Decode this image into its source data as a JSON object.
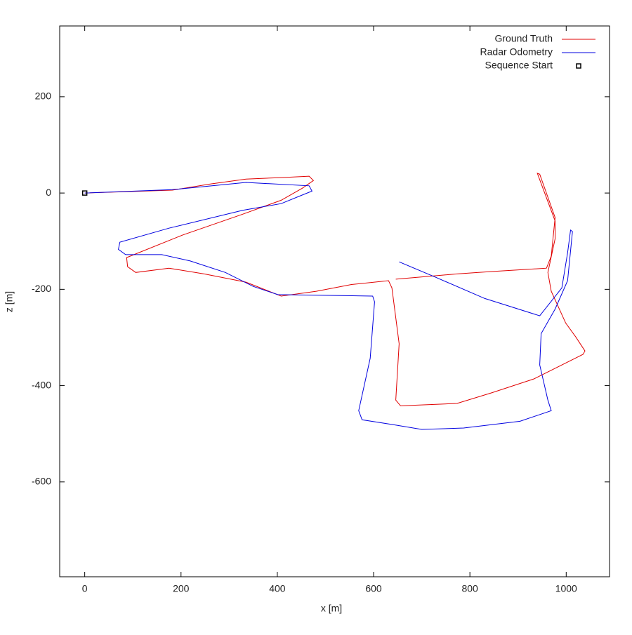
{
  "chart_data": {
    "type": "line",
    "xlabel": "x [m]",
    "ylabel": "z [m]",
    "xlim": [
      -52,
      1090
    ],
    "ylim": [
      -797,
      347
    ],
    "xticks": [
      0,
      200,
      400,
      600,
      800,
      1000
    ],
    "yticks": [
      -600,
      -400,
      -200,
      0,
      200
    ],
    "legend": "top-right",
    "series": [
      {
        "name": "Ground Truth",
        "color": "#e00000",
        "marker": "none",
        "x": [
          0,
          182,
          262,
          335,
          408,
          466,
          475,
          452,
          408,
          328,
          204,
          87,
          89,
          106,
          175,
          248,
          335,
          408,
          481,
          554,
          631,
          638,
          653,
          646,
          656,
          773,
          845,
          933,
          1035,
          1039,
          1020,
          999,
          969,
          962,
          977,
          977,
          940,
          945,
          977,
          969,
          959,
          845,
          773,
          646
        ],
        "values": [
          0,
          6,
          19,
          29,
          32,
          35,
          26,
          10,
          -15,
          -44,
          -87,
          -134,
          -153,
          -165,
          -156,
          -168,
          -185,
          -214,
          -204,
          -190,
          -182,
          -197,
          -313,
          -430,
          -442,
          -437,
          -415,
          -386,
          -335,
          -328,
          -299,
          -270,
          -204,
          -165,
          -95,
          -58,
          41,
          39,
          -51,
          -131,
          -156,
          -163,
          -168,
          -179
        ]
      },
      {
        "name": "Radar Odometry",
        "color": "#0000e0",
        "marker": "none",
        "x": [
          0,
          182,
          335,
          466,
          472,
          452,
          408,
          328,
          175,
          73,
          70,
          85,
          160,
          219,
          292,
          350,
          401,
          598,
          602,
          593,
          569,
          576,
          641,
          700,
          787,
          904,
          969,
          962,
          945,
          948,
          977,
          1003,
          1013,
          1009,
          1003,
          991,
          945,
          831,
          729,
          653
        ],
        "values": [
          0,
          7,
          22,
          15,
          4,
          -4,
          -22,
          -36,
          -73,
          -102,
          -117,
          -128,
          -128,
          -141,
          -165,
          -194,
          -211,
          -214,
          -226,
          -343,
          -452,
          -471,
          -481,
          -491,
          -488,
          -474,
          -452,
          -430,
          -357,
          -292,
          -241,
          -182,
          -80,
          -77,
          -124,
          -197,
          -255,
          -219,
          -175,
          -143
        ]
      },
      {
        "name": "Sequence Start",
        "color": "#000000",
        "marker": "square",
        "x": [
          0
        ],
        "values": [
          0
        ]
      }
    ]
  }
}
